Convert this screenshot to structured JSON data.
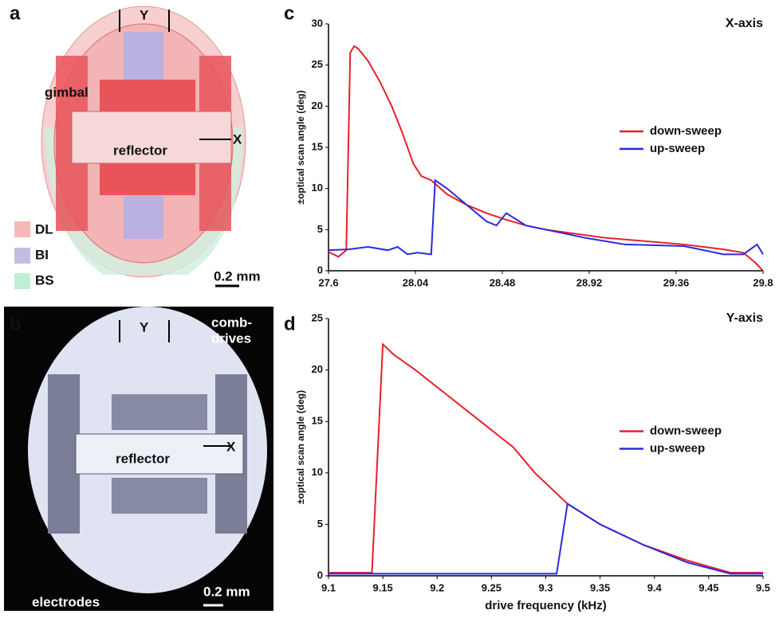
{
  "figure": {
    "a": {
      "label": "a",
      "rot_y": "Y",
      "rot_x": "X",
      "gimbal": "gimbal",
      "reflector": "reflector",
      "legend": [
        "DL",
        "BI",
        "BS"
      ],
      "scale": "0.2 mm"
    },
    "b": {
      "label": "b",
      "rot_y": "Y",
      "rot_x": "X",
      "reflector": "reflector",
      "comb": [
        "comb-",
        "drives"
      ],
      "electrodes": "electrodes",
      "scale": "0.2 mm"
    },
    "c": {
      "label": "c"
    },
    "d": {
      "label": "d"
    }
  },
  "chart_data": [
    {
      "type": "line",
      "title": "X-axis",
      "ylabel": "±optical scan angle (deg)",
      "xlim": [
        27.6,
        29.8
      ],
      "xticks": [
        27.6,
        28.04,
        28.48,
        28.92,
        29.36,
        29.8
      ],
      "ylim": [
        0,
        30
      ],
      "yticks": [
        0,
        5,
        10,
        15,
        20,
        25,
        30
      ],
      "legend": "center right",
      "series": [
        {
          "name": "down-sweep",
          "color": "#e8202a",
          "x": [
            27.6,
            27.65,
            27.69,
            27.71,
            27.73,
            27.75,
            27.8,
            27.86,
            27.92,
            27.97,
            28.0,
            28.03,
            28.07,
            28.12,
            28.2,
            28.3,
            28.4,
            28.5,
            28.6,
            28.7,
            28.85,
            29.0,
            29.2,
            29.4,
            29.6,
            29.7,
            29.76,
            29.8
          ],
          "values": [
            2.3,
            1.7,
            2.5,
            26.5,
            27.3,
            27,
            25.5,
            23,
            20,
            17,
            15,
            13,
            11.5,
            11,
            9.3,
            8,
            7,
            6.2,
            5.5,
            5,
            4.5,
            4,
            3.6,
            3.2,
            2.6,
            2.2,
            1,
            0
          ]
        },
        {
          "name": "up-sweep",
          "color": "#2a2ae0",
          "x": [
            27.6,
            27.7,
            27.8,
            27.9,
            27.95,
            28.0,
            28.05,
            28.12,
            28.14,
            28.2,
            28.3,
            28.4,
            28.45,
            28.5,
            28.6,
            28.7,
            28.9,
            29.1,
            29.4,
            29.6,
            29.7,
            29.77,
            29.8
          ],
          "values": [
            2.5,
            2.6,
            2.9,
            2.5,
            2.9,
            2,
            2.2,
            2,
            11,
            10,
            8,
            6,
            5.5,
            7,
            5.5,
            5,
            4,
            3.2,
            3,
            2,
            2,
            3.2,
            2
          ]
        }
      ]
    },
    {
      "type": "line",
      "title": "Y-axis",
      "ylabel": "±optical scan angle (deg)",
      "xlabel": "drive frequency (kHz)",
      "xlim": [
        9.1,
        9.5
      ],
      "xticks": [
        9.1,
        9.15,
        9.2,
        9.25,
        9.3,
        9.35,
        9.4,
        9.45,
        9.5
      ],
      "ylim": [
        0,
        25
      ],
      "yticks": [
        0,
        5,
        10,
        15,
        20,
        25
      ],
      "legend": "center right",
      "series": [
        {
          "name": "down-sweep",
          "color": "#e8202a",
          "x": [
            9.1,
            9.14,
            9.15,
            9.16,
            9.18,
            9.21,
            9.24,
            9.27,
            9.29,
            9.32,
            9.35,
            9.39,
            9.43,
            9.47,
            9.5
          ],
          "values": [
            0.3,
            0.3,
            22.5,
            21.5,
            20,
            17.5,
            15,
            12.5,
            10,
            7,
            5,
            3,
            1.5,
            0.3,
            0.3
          ]
        },
        {
          "name": "up-sweep",
          "color": "#2a2ae0",
          "x": [
            9.1,
            9.2,
            9.31,
            9.32,
            9.35,
            9.39,
            9.43,
            9.47,
            9.5
          ],
          "values": [
            0.2,
            0.2,
            0.2,
            7,
            5,
            3,
            1.3,
            0.2,
            0.2
          ]
        }
      ]
    }
  ]
}
